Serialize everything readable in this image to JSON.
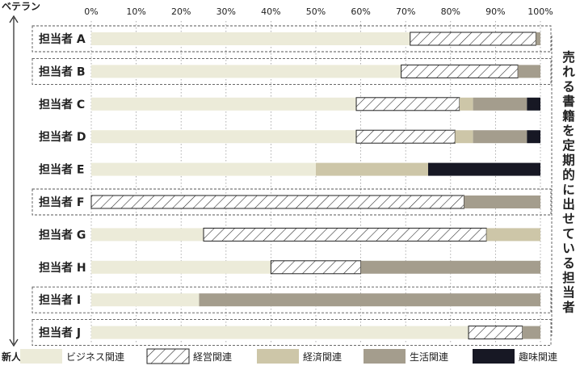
{
  "chart_data": {
    "type": "bar",
    "orientation": "horizontal",
    "stacked": true,
    "percent": true,
    "x_ticks": [
      "0%",
      "10%",
      "20%",
      "30%",
      "40%",
      "50%",
      "60%",
      "70%",
      "80%",
      "90%",
      "100%"
    ],
    "xlim": [
      0,
      100
    ],
    "y_axis_top_label": "ベテラン",
    "y_axis_bottom_label": "新人",
    "categories": [
      "担当者 A",
      "担当者 B",
      "担当者 C",
      "担当者 D",
      "担当者 E",
      "担当者 F",
      "担当者 G",
      "担当者 H",
      "担当者 I",
      "担当者 J"
    ],
    "series": [
      {
        "name": "ビジネス関連",
        "color": "#ecebd9",
        "pattern": "solid",
        "values": [
          71,
          69,
          59,
          59,
          50,
          0,
          25,
          40,
          24,
          84
        ]
      },
      {
        "name": "経営関連",
        "color": "#ffffff",
        "pattern": "hatch",
        "values": [
          28,
          26,
          23,
          22,
          0,
          83,
          63,
          20,
          0,
          12
        ]
      },
      {
        "name": "経済関連",
        "color": "#cdc6a8",
        "pattern": "solid",
        "values": [
          0,
          0,
          3,
          4,
          25,
          0,
          12,
          0,
          0,
          0
        ]
      },
      {
        "name": "生活関連",
        "color": "#a49d8d",
        "pattern": "solid",
        "values": [
          1,
          5,
          12,
          12,
          0,
          17,
          0,
          40,
          76,
          4
        ]
      },
      {
        "name": "趣味関連",
        "color": "#171824",
        "pattern": "solid",
        "values": [
          0,
          0,
          3,
          3,
          25,
          0,
          0,
          0,
          0,
          0
        ]
      }
    ],
    "highlighted_rows": [
      "担当者 A",
      "担当者 B",
      "担当者 F",
      "担当者 I",
      "担当者 J"
    ],
    "annotation": "売れる書籍を定期的に出せている担当者",
    "grid": "vertical-dotted",
    "legend_position": "bottom"
  }
}
